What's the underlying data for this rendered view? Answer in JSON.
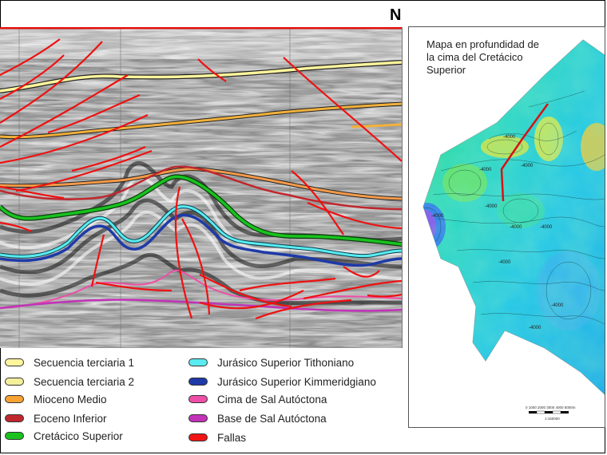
{
  "north_label": "N",
  "map": {
    "title_lines": [
      "Mapa en profundidad de",
      "la cima del Cretácico",
      "Superior"
    ],
    "contour_labels": [
      "-4000",
      "-4000",
      "-4000",
      "-4000",
      "-4000",
      "-4000",
      "-4000",
      "-4000",
      "-4000",
      "-4000"
    ],
    "scale_ticks": "0  1000 2000 3000 4000 5000m",
    "scale_ratio": "1:150000"
  },
  "legend": [
    {
      "label": "Secuencia terciaria 1",
      "color": "#fff59d"
    },
    {
      "label": "Secuencia terciaria 2",
      "color": "#f3ef9a"
    },
    {
      "label": "Mioceno Medio",
      "color": "#f7a233"
    },
    {
      "label": "Eoceno Inferior",
      "color": "#c0272d"
    },
    {
      "label": "Cretácico Superior",
      "color": "#19c21f"
    },
    {
      "label": "Jurásico Superior Tithoniano",
      "color": "#58ecf0"
    },
    {
      "label": "Jurásico Superior Kimmeridgiano",
      "color": "#1e3aa8"
    },
    {
      "label": "Cima de Sal Autóctona",
      "color": "#ee4fa6"
    },
    {
      "label": "Base de Sal Autóctona",
      "color": "#c232b8"
    },
    {
      "label": "Fallas",
      "color": "#f01414"
    }
  ]
}
